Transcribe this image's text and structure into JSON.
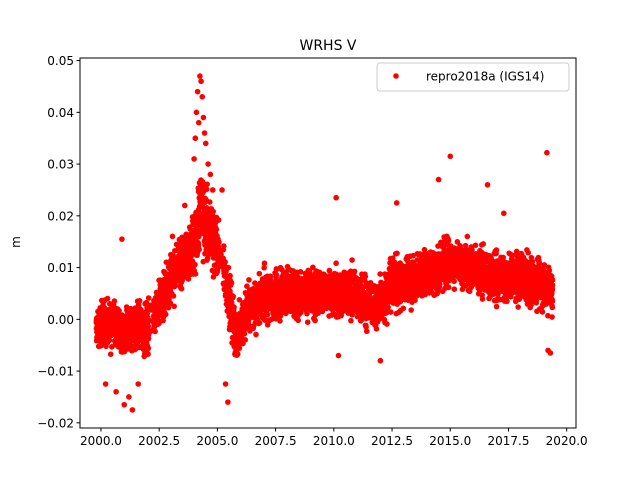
{
  "chart_data": {
    "type": "scatter",
    "title": "WRHS V",
    "xlabel": "",
    "ylabel": "m",
    "xlim": [
      1999.1,
      2020.4
    ],
    "ylim": [
      -0.021,
      0.0505
    ],
    "xticks": [
      2000.0,
      2002.5,
      2005.0,
      2007.5,
      2010.0,
      2012.5,
      2015.0,
      2017.5,
      2020.0
    ],
    "xtick_labels": [
      "2000.0",
      "2002.5",
      "2005.0",
      "2007.5",
      "2010.0",
      "2012.5",
      "2015.0",
      "2017.5",
      "2020.0"
    ],
    "yticks": [
      -0.02,
      -0.01,
      0.0,
      0.01,
      0.02,
      0.03,
      0.04,
      0.05
    ],
    "ytick_labels": [
      "−0.02",
      "−0.01",
      "0.00",
      "0.01",
      "0.02",
      "0.03",
      "0.04",
      "0.05"
    ],
    "grid": false,
    "legend_position": "top-right",
    "series": [
      {
        "name": "repro2018a (IGS14)",
        "color": "#ff0000",
        "marker": "circle",
        "trend_x": [
          1999.8,
          2000.5,
          2001.0,
          2001.5,
          2002.0,
          2002.5,
          2003.0,
          2003.5,
          2004.0,
          2004.3,
          2004.6,
          2005.0,
          2005.5,
          2005.8,
          2006.3,
          2007.0,
          2008.0,
          2009.0,
          2010.0,
          2011.0,
          2011.5,
          2012.0,
          2012.5,
          2013.0,
          2014.0,
          2015.0,
          2016.0,
          2017.0,
          2018.0,
          2019.0,
          2019.4
        ],
        "trend_y": [
          -0.002,
          0.0,
          -0.003,
          -0.001,
          -0.002,
          0.003,
          0.008,
          0.012,
          0.013,
          0.022,
          0.018,
          0.014,
          0.005,
          -0.004,
          0.002,
          0.004,
          0.005,
          0.005,
          0.005,
          0.005,
          0.003,
          0.003,
          0.007,
          0.007,
          0.009,
          0.011,
          0.01,
          0.008,
          0.008,
          0.007,
          0.005
        ],
        "spread": 0.004,
        "outliers": [
          {
            "x": 2004.25,
            "y": 0.047
          },
          {
            "x": 2004.3,
            "y": 0.046
          },
          {
            "x": 2004.15,
            "y": 0.044
          },
          {
            "x": 2004.35,
            "y": 0.043
          },
          {
            "x": 2004.1,
            "y": 0.04
          },
          {
            "x": 2004.2,
            "y": 0.038
          },
          {
            "x": 2004.4,
            "y": 0.039
          },
          {
            "x": 2004.45,
            "y": 0.036
          },
          {
            "x": 2004.5,
            "y": 0.034
          },
          {
            "x": 2004.05,
            "y": 0.035
          },
          {
            "x": 2004.6,
            "y": 0.03
          },
          {
            "x": 2004.7,
            "y": 0.028
          },
          {
            "x": 2004.0,
            "y": 0.031
          },
          {
            "x": 2004.8,
            "y": 0.025
          },
          {
            "x": 2005.2,
            "y": 0.025
          },
          {
            "x": 2003.6,
            "y": 0.022
          },
          {
            "x": 2015.0,
            "y": 0.0315
          },
          {
            "x": 2019.15,
            "y": 0.0322
          },
          {
            "x": 2014.5,
            "y": 0.027
          },
          {
            "x": 2016.6,
            "y": 0.026
          },
          {
            "x": 2010.1,
            "y": 0.0235
          },
          {
            "x": 2012.7,
            "y": 0.0225
          },
          {
            "x": 2017.3,
            "y": 0.0205
          },
          {
            "x": 2001.0,
            "y": -0.0165
          },
          {
            "x": 2001.35,
            "y": -0.0175
          },
          {
            "x": 2005.45,
            "y": -0.016
          },
          {
            "x": 2001.2,
            "y": -0.015
          },
          {
            "x": 2000.65,
            "y": -0.014
          },
          {
            "x": 2000.2,
            "y": -0.0125
          },
          {
            "x": 2001.6,
            "y": -0.0125
          },
          {
            "x": 2000.9,
            "y": 0.0155
          },
          {
            "x": 2019.3,
            "y": -0.0065
          },
          {
            "x": 2019.2,
            "y": -0.006
          },
          {
            "x": 2010.2,
            "y": -0.007
          },
          {
            "x": 2005.35,
            "y": -0.0125
          },
          {
            "x": 2012.0,
            "y": -0.008
          }
        ]
      }
    ]
  }
}
